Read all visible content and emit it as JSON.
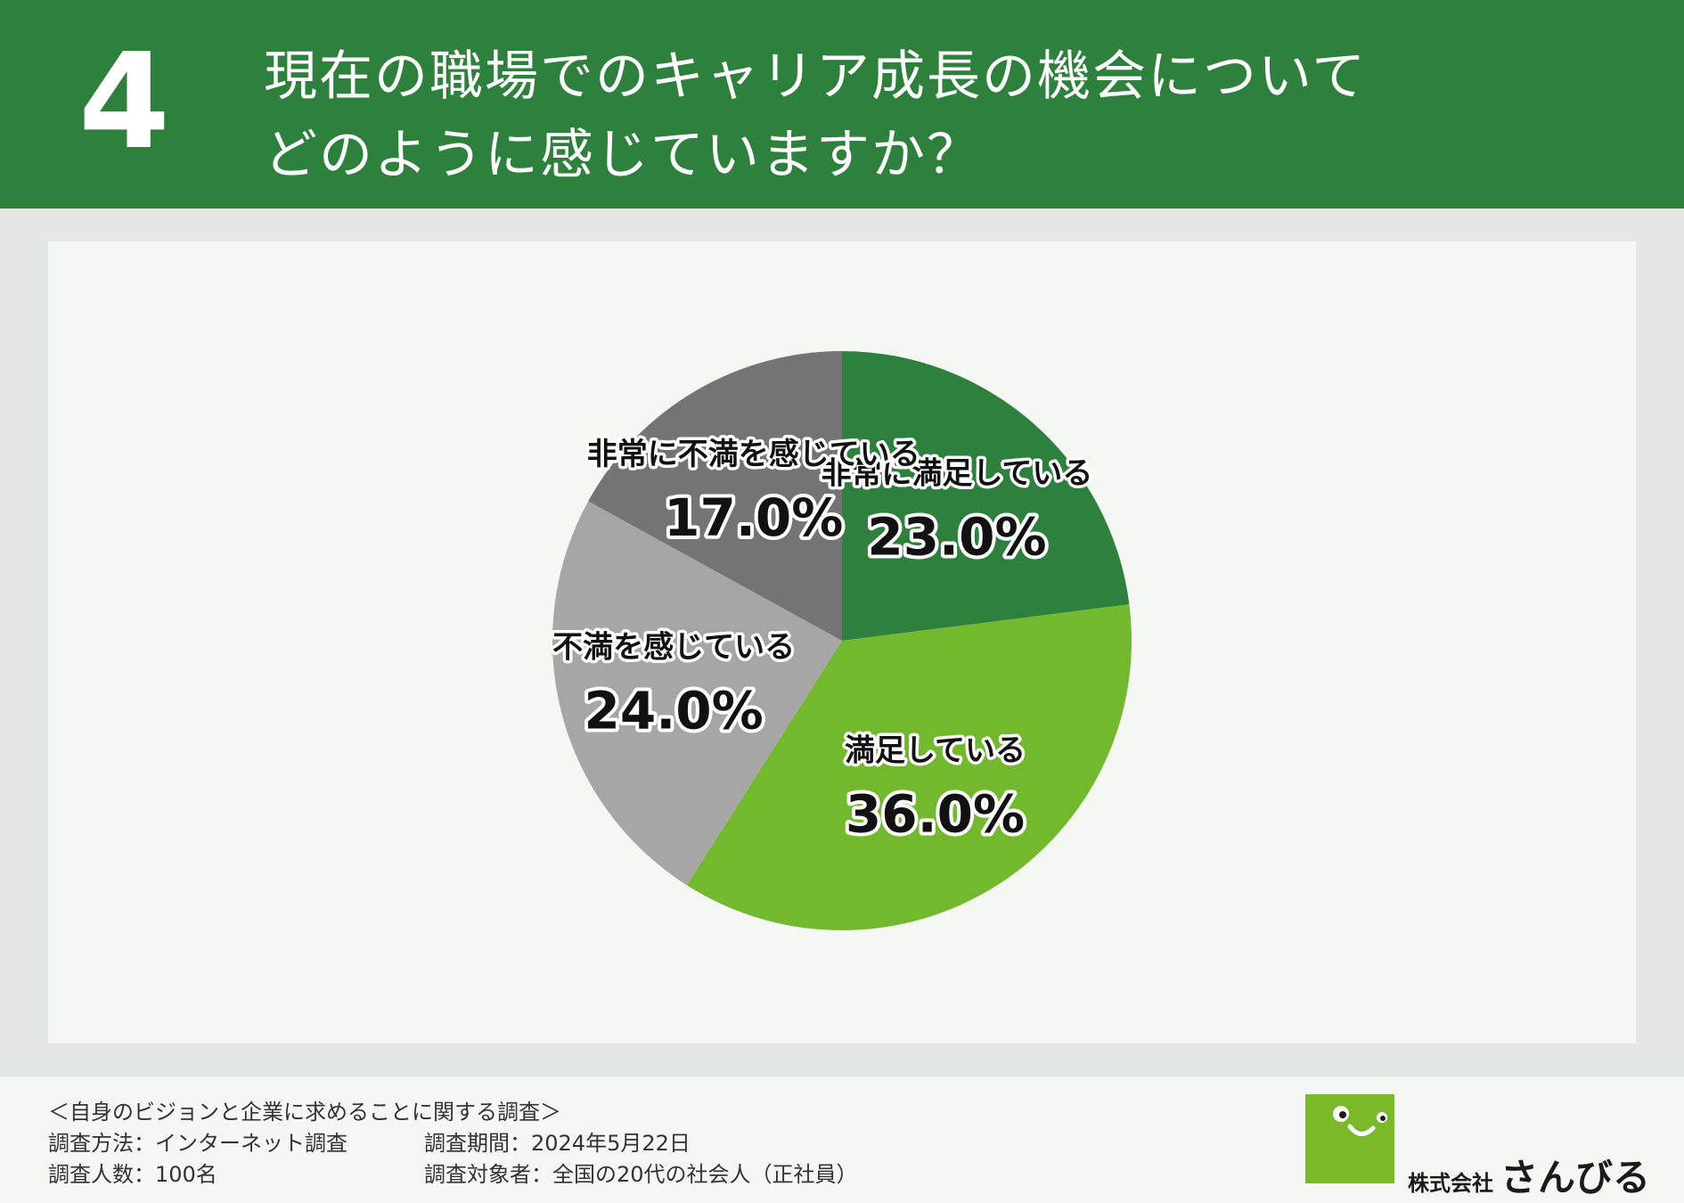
{
  "header": {
    "number": "4",
    "title_line1": "現在の職場でのキャリア成長の機会について",
    "title_line2": "どのように感じていますか？"
  },
  "chart_data": {
    "type": "pie",
    "slices": [
      {
        "label": "非常に満足している",
        "value": 23.0,
        "value_text": "23.0%",
        "color": "#2e813d"
      },
      {
        "label": "満足している",
        "value": 36.0,
        "value_text": "36.0%",
        "color": "#72b92e"
      },
      {
        "label": "不満を感じている",
        "value": 24.0,
        "value_text": "24.0%",
        "color": "#a6a6a6"
      },
      {
        "label": "非常に不満を感じている",
        "value": 17.0,
        "value_text": "17.0%",
        "color": "#747474"
      }
    ],
    "start": "12 o'clock",
    "direction": "clockwise"
  },
  "footer": {
    "survey_title": "＜自身のビジョンと企業に求めることに関する調査＞",
    "method": "調査方法：インターネット調査",
    "period": "調査期間：2024年5月22日",
    "respondents": "調査人数：100名",
    "target": "調査対象者：全国の20代の社会人（正社員）",
    "logo_company": "株式会社",
    "logo_brand": "さんびる"
  }
}
